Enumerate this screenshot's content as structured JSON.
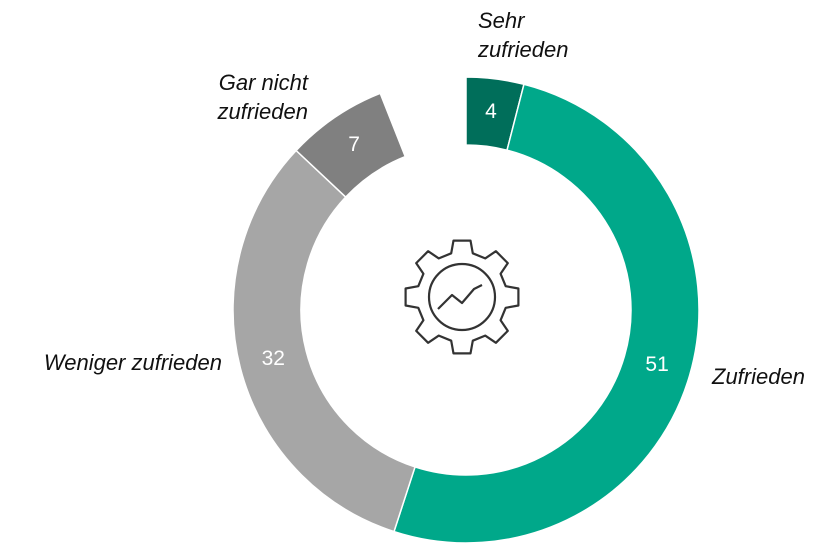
{
  "chart_data": {
    "type": "donut",
    "categories": [
      "Sehr zufrieden",
      "Zufrieden",
      "Weniger zufrieden",
      "Gar nicht zufrieden"
    ],
    "values": [
      4,
      51,
      32,
      7
    ],
    "colors": [
      "#006e5a",
      "#00a88a",
      "#a6a6a6",
      "#808080"
    ]
  }
}
